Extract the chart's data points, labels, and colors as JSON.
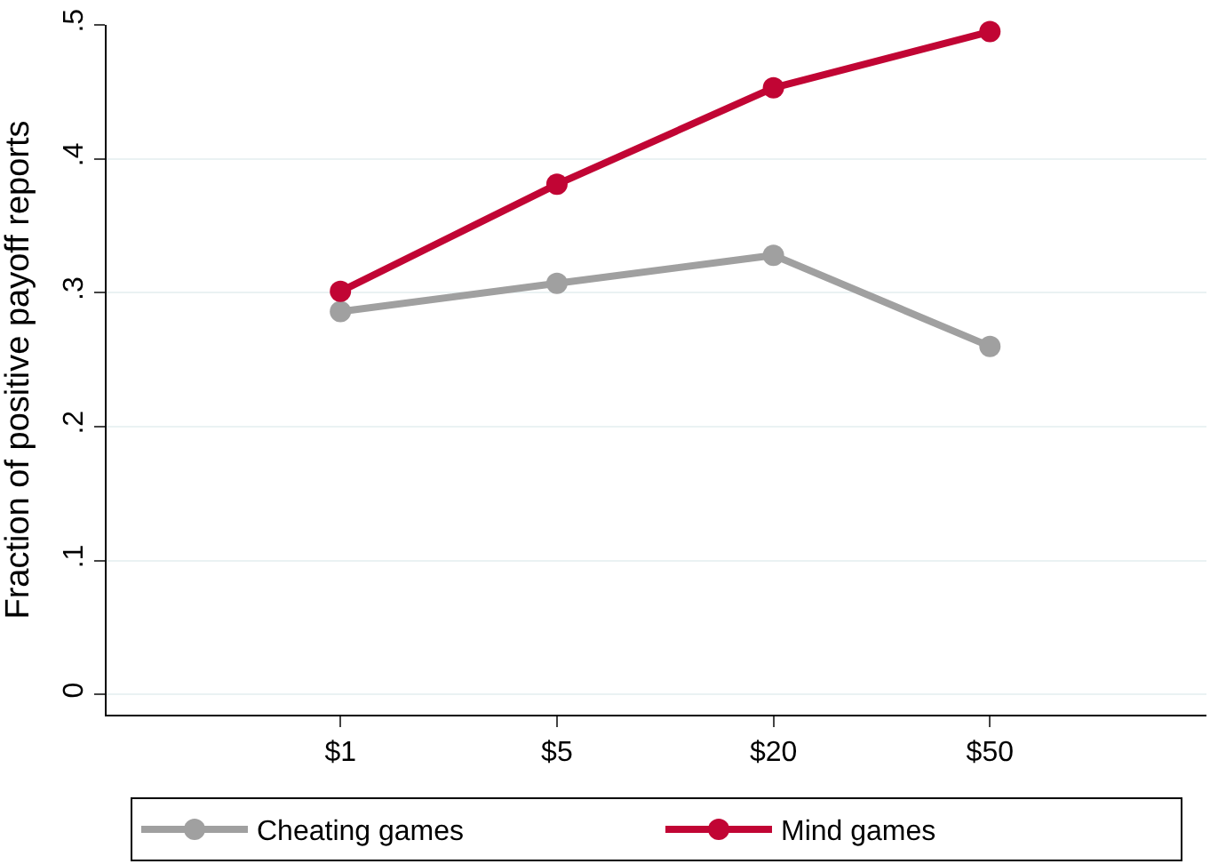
{
  "chart_data": {
    "type": "line",
    "ylabel": "Fraction of positive payoff reports",
    "categories": [
      "$1",
      "$5",
      "$20",
      "$50"
    ],
    "series": [
      {
        "name": "Cheating games",
        "color": "#a0a0a0",
        "values": [
          0.286,
          0.307,
          0.328,
          0.26
        ]
      },
      {
        "name": "Mind games",
        "color": "#c10534",
        "values": [
          0.301,
          0.381,
          0.453,
          0.495
        ]
      }
    ],
    "ylim": [
      -0.015,
      0.5
    ],
    "yticks": [
      {
        "value": 0,
        "label": "0"
      },
      {
        "value": 0.1,
        "label": ".1"
      },
      {
        "value": 0.2,
        "label": ".2"
      },
      {
        "value": 0.3,
        "label": ".3"
      },
      {
        "value": 0.4,
        "label": ".4"
      },
      {
        "value": 0.5,
        "label": ".5"
      }
    ],
    "grid": "y",
    "legend": "bottom",
    "marker": "circle",
    "line_style": "solid"
  }
}
